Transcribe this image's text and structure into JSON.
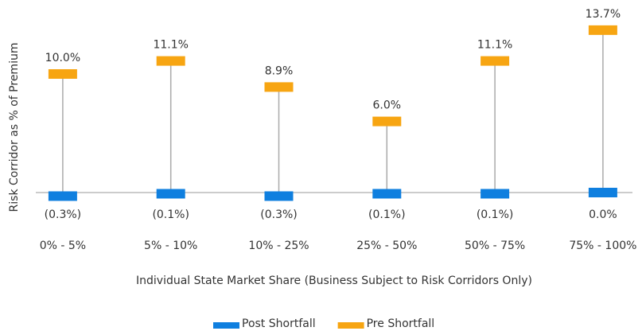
{
  "chart_data": {
    "type": "high-low",
    "y_label": "Risk Corridor as % of Premium",
    "x_label": "Individual State Market Share (Business Subject to Risk Corridors Only)",
    "categories": [
      "0% - 5%",
      "5% - 10%",
      "10% - 25%",
      "25% - 50%",
      "50% - 75%",
      "75% - 100%"
    ],
    "series": [
      {
        "name": "Post Shortfall",
        "color": "#0f7fdf",
        "values": [
          -0.3,
          -0.1,
          -0.3,
          -0.1,
          -0.1,
          0.0
        ],
        "value_labels": [
          "(0.3%)",
          "(0.1%)",
          "(0.3%)",
          "(0.1%)",
          "(0.1%)",
          "0.0%"
        ]
      },
      {
        "name": "Pre Shortfall",
        "color": "#f7a512",
        "values": [
          10.0,
          11.1,
          8.9,
          6.0,
          11.1,
          13.7
        ],
        "value_labels": [
          "10.0%",
          "11.1%",
          "8.9%",
          "6.0%",
          "11.1%",
          "13.7%"
        ]
      }
    ],
    "ylim": [
      -1,
      15
    ],
    "legend": "bottom"
  }
}
